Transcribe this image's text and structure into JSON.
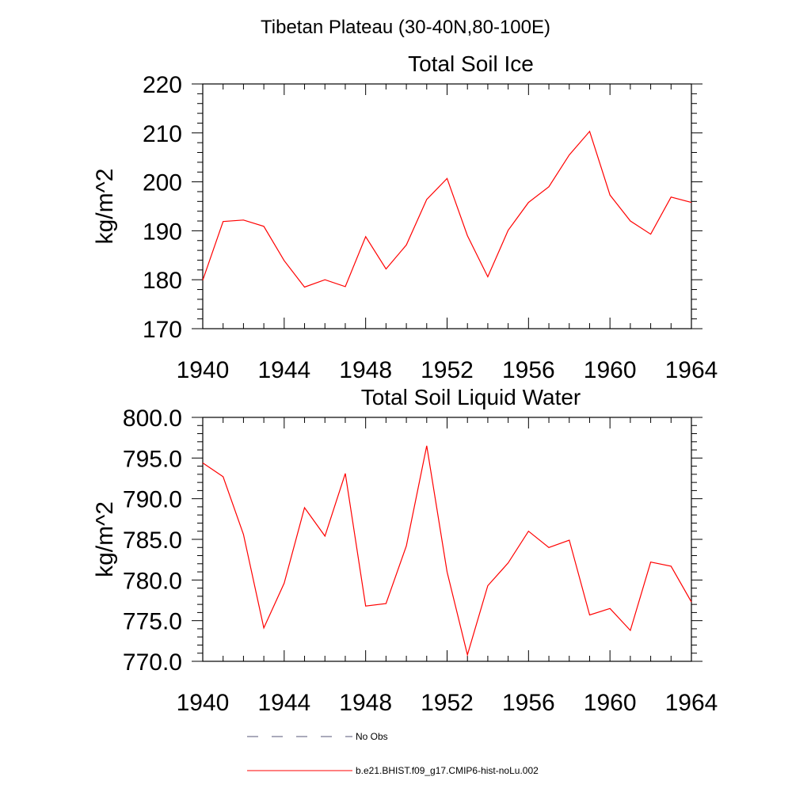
{
  "figure": {
    "title": "Tibetan Plateau (30-40N,80-100E)"
  },
  "chart_data": [
    {
      "type": "line",
      "title": "Total Soil Ice",
      "ylabel": "kg/m^2",
      "xlabel": "",
      "xlim": [
        1940,
        1964
      ],
      "ylim": [
        170,
        220
      ],
      "xticks": [
        1940,
        1944,
        1948,
        1952,
        1956,
        1960,
        1964
      ],
      "yticks": [
        170,
        180,
        190,
        200,
        210,
        220
      ],
      "ytick_labels": [
        "170",
        "180",
        "190",
        "200",
        "210",
        "220"
      ],
      "x": [
        1940,
        1941,
        1942,
        1943,
        1944,
        1945,
        1946,
        1947,
        1948,
        1949,
        1950,
        1951,
        1952,
        1953,
        1954,
        1955,
        1956,
        1957,
        1958,
        1959,
        1960,
        1961,
        1962,
        1963,
        1964
      ],
      "series": [
        {
          "name": "b.e21.BHIST.f09_g17.CMIP6-hist-noLu.002",
          "color": "#ff0000",
          "values": [
            179.9,
            191.9,
            192.2,
            190.9,
            183.9,
            178.5,
            180.0,
            178.6,
            188.8,
            182.2,
            187.1,
            196.4,
            200.7,
            189.0,
            180.6,
            190.1,
            195.8,
            199.0,
            205.5,
            210.3,
            197.3,
            192.0,
            189.3,
            196.9,
            195.8
          ]
        }
      ]
    },
    {
      "type": "line",
      "title": "Total Soil Liquid Water",
      "ylabel": "kg/m^2",
      "xlabel": "",
      "xlim": [
        1940,
        1964
      ],
      "ylim": [
        770,
        800
      ],
      "xticks": [
        1940,
        1944,
        1948,
        1952,
        1956,
        1960,
        1964
      ],
      "yticks": [
        770,
        775,
        780,
        785,
        790,
        795,
        800
      ],
      "ytick_labels": [
        "770.0",
        "775.0",
        "780.0",
        "785.0",
        "790.0",
        "795.0",
        "800.0"
      ],
      "x": [
        1940,
        1941,
        1942,
        1943,
        1944,
        1945,
        1946,
        1947,
        1948,
        1949,
        1950,
        1951,
        1952,
        1953,
        1954,
        1955,
        1956,
        1957,
        1958,
        1959,
        1960,
        1961,
        1962,
        1963,
        1964
      ],
      "series": [
        {
          "name": "b.e21.BHIST.f09_g17.CMIP6-hist-noLu.002",
          "color": "#ff0000",
          "values": [
            794.4,
            792.7,
            785.6,
            774.1,
            779.6,
            788.9,
            785.4,
            793.1,
            776.8,
            777.1,
            784.2,
            796.5,
            781.0,
            770.8,
            779.3,
            782.1,
            786.0,
            784.0,
            784.9,
            775.7,
            776.5,
            773.8,
            782.2,
            781.7,
            777.3
          ]
        }
      ]
    }
  ],
  "legend": {
    "placement": "bottom",
    "items": [
      {
        "label": "No Obs",
        "style": "dashed",
        "color": "#555577"
      },
      {
        "label": "b.e21.BHIST.f09_g17.CMIP6-hist-noLu.002",
        "style": "solid",
        "color": "#ff0000"
      }
    ]
  }
}
